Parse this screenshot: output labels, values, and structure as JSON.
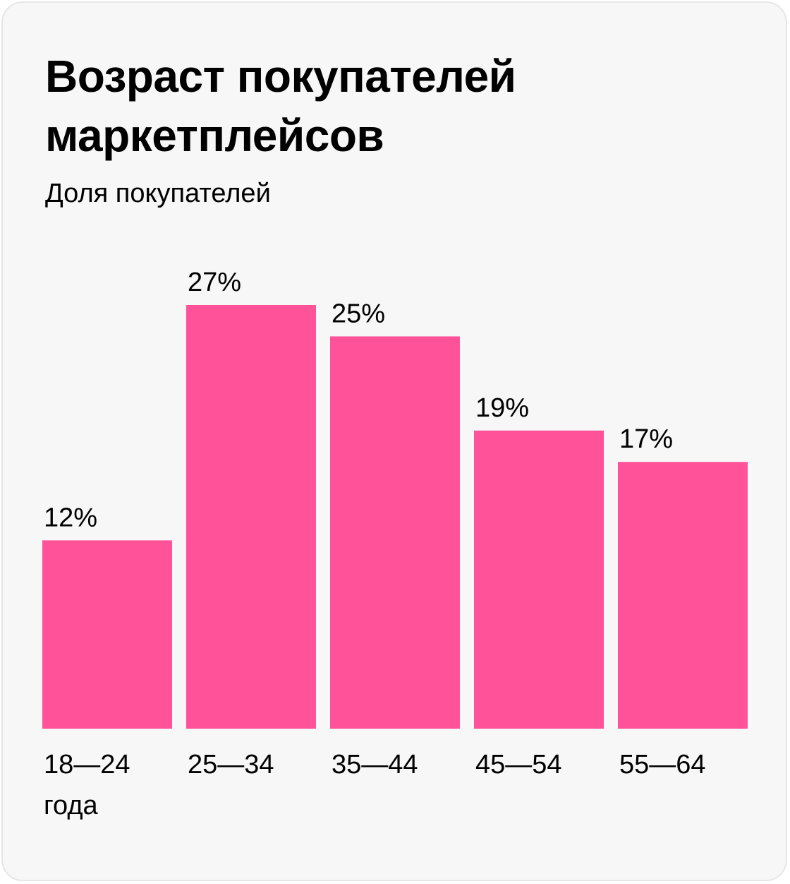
{
  "title": "Возраст покупателей маркетплейсов",
  "subtitle": "Доля покупателей",
  "colors": {
    "bar": "#ff5298",
    "background": "#f7f7f7",
    "text": "#000000"
  },
  "chart_data": {
    "type": "bar",
    "title": "Возраст покупателей маркетплейсов",
    "ylabel": "Доля покупателей",
    "categories": [
      "18—24",
      "25—34",
      "35—44",
      "45—54",
      "55—64"
    ],
    "category_unit": "года",
    "values": [
      12,
      27,
      25,
      19,
      17
    ],
    "value_labels": [
      "12%",
      "27%",
      "25%",
      "19%",
      "17%"
    ],
    "ylim": [
      0,
      27
    ],
    "grid": false,
    "legend": "none"
  }
}
